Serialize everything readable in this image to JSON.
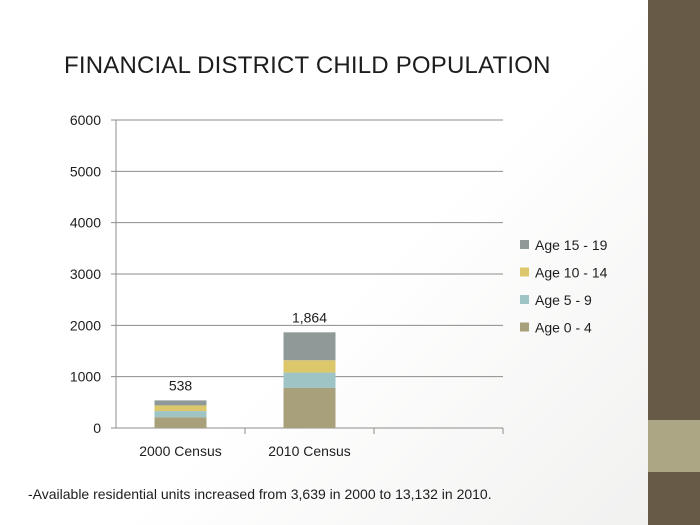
{
  "slide": {
    "title": "FINANCIAL DISTRICT CHILD POPULATION",
    "footnote": "-Available residential units increased from 3,639 in 2000 to 13,132 in 2010."
  },
  "colors": {
    "side_bar": "#675b48",
    "side_accent": "#aca684"
  },
  "chart_data": {
    "type": "bar",
    "stacked": true,
    "categories": [
      "2000 Census",
      "2010 Census",
      ""
    ],
    "ylim": [
      0,
      6000
    ],
    "yticks": [
      0,
      1000,
      2000,
      3000,
      4000,
      5000,
      6000
    ],
    "ytick_labels": [
      "0",
      "1000",
      "2000",
      "3000",
      "4000",
      "5000",
      "6000"
    ],
    "grid": true,
    "legend_position": "right",
    "series": [
      {
        "name": "Age 0 - 4",
        "color": "#a8a07a",
        "values": [
          210,
          780,
          null
        ]
      },
      {
        "name": "Age 5 - 9",
        "color": "#9fc4c6",
        "values": [
          120,
          300,
          null
        ]
      },
      {
        "name": "Age 10 - 14",
        "color": "#dcc86a",
        "values": [
          110,
          240,
          null
        ]
      },
      {
        "name": "Age 15 - 19",
        "color": "#8f9a98",
        "values": [
          98,
          544,
          null
        ]
      }
    ],
    "totals": [
      538,
      1864,
      null
    ],
    "total_labels": [
      "538",
      "1,864",
      ""
    ]
  }
}
